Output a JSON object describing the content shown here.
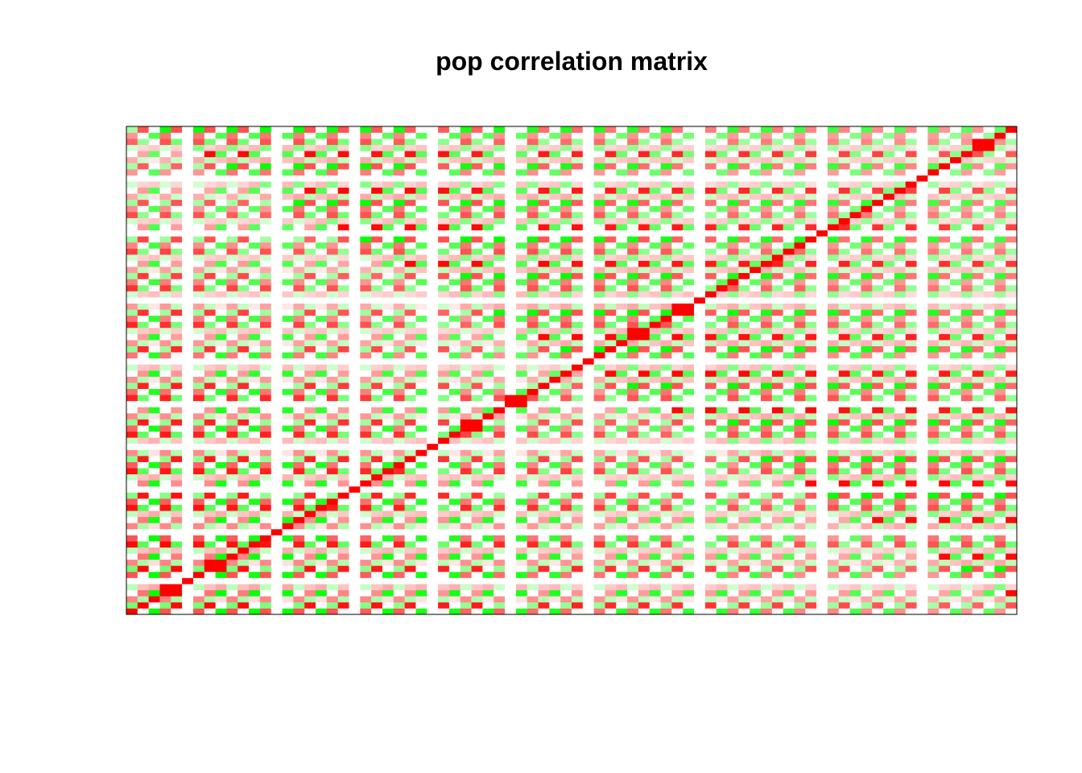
{
  "chart_data": {
    "type": "heatmap",
    "title": "pop correlation matrix",
    "n": 80,
    "rows": 80,
    "cols": 80,
    "xlabel": "",
    "ylabel": "",
    "axes_labels_shown": false,
    "diagonal_value": 1,
    "value_range": [
      -1,
      1
    ],
    "colors": {
      "strong_positive": "#ff0000",
      "moderate_positive": "#ff7f7f",
      "weak_positive": "#ffd0d0",
      "zero": "#ffffff",
      "weak_negative": "#d0ffd0",
      "moderate_negative": "#7fff7f",
      "strong_negative": "#00ff00",
      "frame": "#000000"
    },
    "cell_pattern": {
      "row_period": 6,
      "col_period": 3,
      "values": [
        [
          1.0,
          0.0,
          -1.0
        ],
        [
          -1.0,
          1.0,
          0.0
        ],
        [
          0.5,
          -0.5,
          0.25
        ],
        [
          0.0,
          1.0,
          -1.0
        ],
        [
          -0.5,
          0.25,
          0.5
        ],
        [
          1.0,
          -1.0,
          0.0
        ]
      ]
    },
    "column_strengths": [
      0.5,
      0.3,
      0.95,
      0.5,
      0.3,
      0.95,
      0.5,
      0.3,
      0.95,
      0.5,
      0.3,
      0.95,
      0.5,
      0.25,
      0.95,
      0.5,
      0.25,
      0.9,
      0.5,
      0.2,
      0.9,
      0.45,
      0.2,
      0.9,
      0.45,
      0.15,
      0.85,
      0.45,
      0.15,
      0.85,
      0.4,
      0.1,
      0.85,
      0.4,
      0.1,
      0.8,
      0.35,
      0.1,
      0.8,
      0.35,
      0.1,
      0.8,
      0.3,
      0.1,
      0.75,
      0.3,
      0.05,
      0.75,
      0.3,
      0.05,
      0.7,
      0.25,
      0.05,
      0.7,
      0.25,
      0.05,
      0.65,
      0.25,
      0.05,
      0.6,
      0.2,
      0.05,
      0.6,
      0.2,
      0.05,
      0.55,
      0.15,
      0.05,
      0.5,
      0.15,
      0.05,
      0.5,
      0.1,
      0.0,
      0.45,
      0.1,
      0.0,
      0.4,
      0.1,
      0.0
    ],
    "zero_columns": [
      5,
      13,
      20,
      27,
      34,
      41,
      51,
      62,
      71
    ],
    "diagonal_blocks": [
      [
        3,
        2
      ],
      [
        7,
        2
      ],
      [
        30,
        2
      ],
      [
        34,
        2
      ],
      [
        45,
        2
      ],
      [
        49,
        2
      ],
      [
        76,
        2
      ]
    ]
  }
}
